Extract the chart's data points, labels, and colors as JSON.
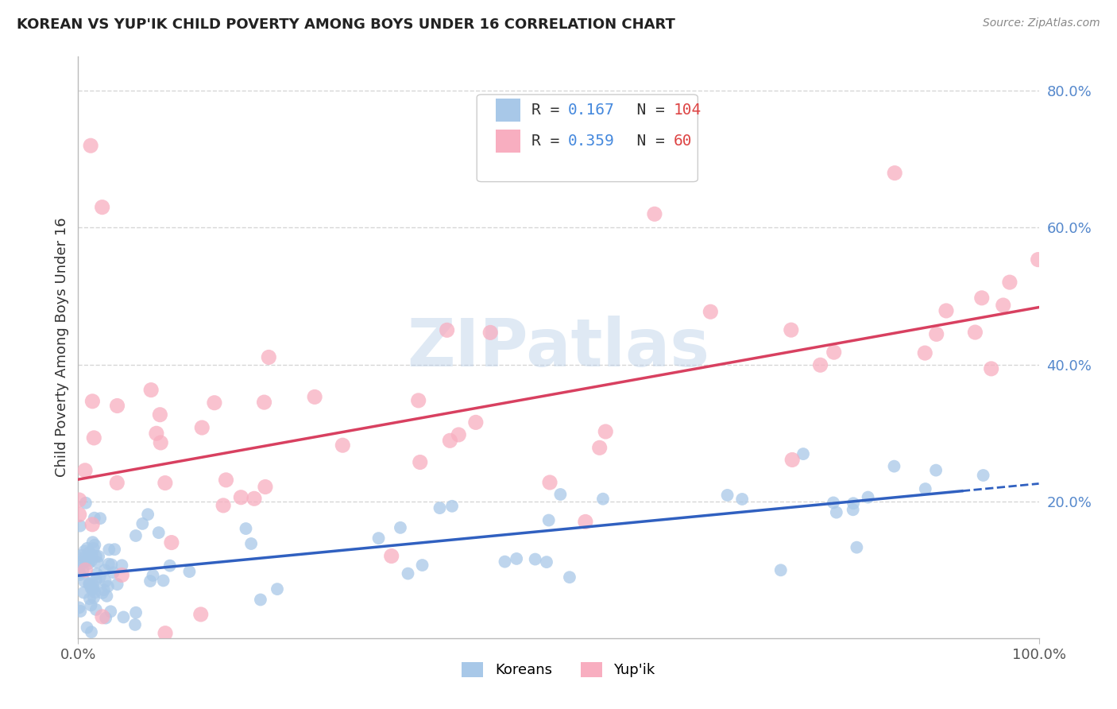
{
  "title": "KOREAN VS YUP'IK CHILD POVERTY AMONG BOYS UNDER 16 CORRELATION CHART",
  "source": "Source: ZipAtlas.com",
  "ylabel": "Child Poverty Among Boys Under 16",
  "xlim": [
    0,
    1
  ],
  "ylim": [
    0,
    0.85
  ],
  "yticks": [
    0.2,
    0.4,
    0.6,
    0.8
  ],
  "ytick_labels": [
    "20.0%",
    "40.0%",
    "60.0%",
    "80.0%"
  ],
  "xtick_labels": [
    "0.0%",
    "100.0%"
  ],
  "korean_R": 0.167,
  "korean_N": 104,
  "yupik_R": 0.359,
  "yupik_N": 60,
  "korean_color": "#a8c8e8",
  "yupik_color": "#f8aec0",
  "korean_line_color": "#3060c0",
  "yupik_line_color": "#e0406080",
  "yupik_line_color_solid": "#d84060",
  "watermark": "ZIPatlas",
  "background_color": "#ffffff",
  "grid_color": "#cccccc",
  "title_color": "#222222",
  "legend_label_1": "Koreans",
  "legend_label_2": "Yup'ik",
  "r_text_color": "#4488dd",
  "n_text_color": "#dd4444",
  "source_color": "#888888"
}
